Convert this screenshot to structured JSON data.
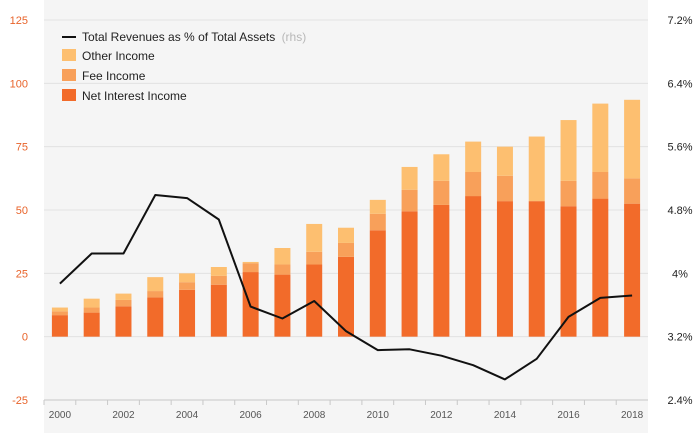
{
  "chart_data": {
    "type": "bar",
    "stacked": true,
    "categories": [
      "2000",
      "2001",
      "2002",
      "2003",
      "2004",
      "2005",
      "2006",
      "2007",
      "2008",
      "2009",
      "2010",
      "2011",
      "2012",
      "2013",
      "2014",
      "2015",
      "2016",
      "2017",
      "2018"
    ],
    "series": [
      {
        "name": "Net Interest Income",
        "color": "#f26b2a",
        "values": [
          8.5,
          9.5,
          12,
          15.5,
          18.5,
          20.5,
          25.5,
          24.5,
          28.5,
          31.5,
          42,
          49.5,
          52,
          55.5,
          53.5,
          53.5,
          51.5,
          54.5,
          52.5
        ]
      },
      {
        "name": "Fee Income",
        "color": "#f8a05a",
        "values": [
          1.5,
          2,
          2.5,
          2.5,
          3,
          3.5,
          3.5,
          4,
          5,
          5.5,
          6.5,
          8.5,
          9.5,
          9.5,
          10,
          0,
          10,
          10.5,
          10
        ]
      },
      {
        "name": "Other Income",
        "color": "#fdbf70",
        "values": [
          1.5,
          3.5,
          2.5,
          5.5,
          3.5,
          3.5,
          0.5,
          6.5,
          11,
          6,
          5.5,
          9,
          10.5,
          12,
          11.5,
          25.5,
          24,
          27,
          31
        ]
      }
    ],
    "line_series": {
      "name": "Total Revenues as % of Total Assets",
      "name_note": "(rhs)",
      "color": "#111111",
      "axis": "right",
      "values": [
        3.87,
        4.25,
        4.25,
        4.99,
        4.95,
        4.68,
        3.58,
        3.43,
        3.65,
        3.27,
        3.03,
        3.04,
        2.96,
        2.84,
        2.66,
        2.92,
        3.45,
        3.69,
        3.72
      ]
    },
    "y_left": {
      "ticks": [
        -25,
        0,
        25,
        50,
        75,
        100,
        125
      ],
      "ylim": [
        -25,
        125
      ],
      "color": "#e8632a"
    },
    "y_right": {
      "tick_labels": [
        "2.4%",
        "3.2%",
        "4%",
        "4.8%",
        "5.6%",
        "6.4%",
        "7.2%"
      ],
      "ticks": [
        2.4,
        3.2,
        4.0,
        4.8,
        5.6,
        6.4,
        7.2
      ],
      "ylim": [
        2.4,
        7.2
      ]
    },
    "x_tick_labels": [
      "2000",
      "2002",
      "2004",
      "2006",
      "2008",
      "2010",
      "2012",
      "2014",
      "2016",
      "2018"
    ],
    "grid": true,
    "legend_position": "top-left"
  }
}
